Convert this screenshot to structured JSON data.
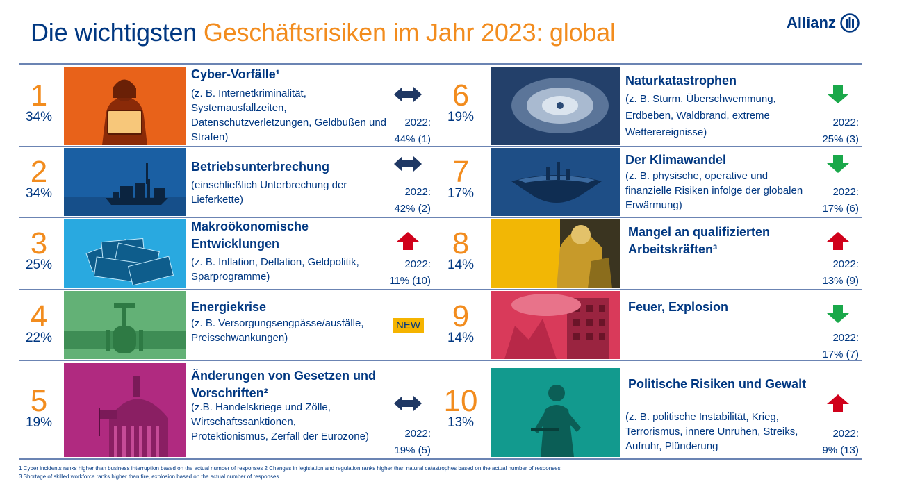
{
  "header": {
    "title_part1": "Die wichtigsten ",
    "title_part2": "Geschäftsrisiken im Jahr 2023: global",
    "logo_text": "Allianz"
  },
  "risks": [
    {
      "rank": "1",
      "pct": "34%",
      "title": "Cyber-Vorfälle¹",
      "desc": "(z. B. Internetkriminalität, Systemausfallzeiten, Datenschutzverletzungen, Geldbußen und Strafen)",
      "trend": "unchanged",
      "prev_label": "2022:",
      "prev_value": "44% (1)"
    },
    {
      "rank": "2",
      "pct": "34%",
      "title": "Betriebsunterbrechung",
      "desc": "(einschließlich Unterbrechung der Lieferkette)",
      "trend": "unchanged",
      "prev_label": "2022:",
      "prev_value": "42% (2)"
    },
    {
      "rank": "3",
      "pct": "25%",
      "title": "Makroökonomische Entwicklungen",
      "desc": "(z. B. Inflation, Deflation, Geldpolitik, Sparprogramme)",
      "trend": "up",
      "prev_label": "2022:",
      "prev_value": "11% (10)"
    },
    {
      "rank": "4",
      "pct": "22%",
      "title": "Energiekrise",
      "desc": "(z. B. Versorgungsengpässe/ausfälle, Preisschwankungen)",
      "trend": "new",
      "badge": "NEW"
    },
    {
      "rank": "5",
      "pct": "19%",
      "title": "Änderungen von Gesetzen und Vorschriften²",
      "desc": "(z.B. Handelskriege und Zölle, Wirtschaftssanktionen, Protektionismus, Zerfall der Eurozone)",
      "trend": "unchanged",
      "prev_label": "2022:",
      "prev_value": "19% (5)"
    },
    {
      "rank": "6",
      "pct": "19%",
      "title": "Naturkatastrophen",
      "desc": "(z. B. Sturm, Überschwemmung, Erdbeben, Waldbrand, extreme Wetterereignisse)",
      "trend": "down",
      "prev_label": "2022:",
      "prev_value": "25% (3)"
    },
    {
      "rank": "7",
      "pct": "17%",
      "title": "Der Klimawandel",
      "desc": "(z. B. physische, operative und finanzielle Risiken infolge der globalen Erwärmung)",
      "trend": "down",
      "prev_label": "2022:",
      "prev_value": "17% (6)"
    },
    {
      "rank": "8",
      "pct": "14%",
      "title": "Mangel an qualifizierten Arbeitskräften³",
      "desc": "",
      "trend": "up",
      "prev_label": "2022:",
      "prev_value": "13% (9)"
    },
    {
      "rank": "9",
      "pct": "14%",
      "title": "Feuer, Explosion",
      "desc": "",
      "trend": "down",
      "prev_label": "2022:",
      "prev_value": "17% (7)"
    },
    {
      "rank": "10",
      "pct": "13%",
      "title": "Politische Risiken und Gewalt",
      "desc": "(z. B. politische Instabilität, Krieg, Terrorismus, innere Unruhen, Streiks, Aufruhr, Plünderung",
      "trend": "up",
      "prev_label": "2022:",
      "prev_value": "9% (13)"
    }
  ],
  "footnotes": {
    "line1": "1 Cyber incidents ranks higher than business interruption based on the actual number of responses  2 Changes in legislation and regulation ranks higher than natural catastrophes based on the actual number of responses",
    "line2": "3 Shortage of skilled workforce ranks higher than fire, explosion based on the actual number of responses"
  },
  "colors": {
    "brand_blue": "#003781",
    "accent_orange": "#f28c1e",
    "trend_up": "#d0011b",
    "trend_down": "#1aa84a",
    "badge": "#f5b400",
    "icon_cyber": "#e8621a",
    "icon_business": "#1a5fa3",
    "icon_macro": "#29a9e0",
    "icon_energy": "#5aa86a",
    "icon_law": "#b02a80",
    "icon_natcat": "#23406a",
    "icon_climate": "#1e4e86",
    "icon_workforce": "#f2b705",
    "icon_fire": "#d93a5a",
    "icon_political": "#129a8e"
  }
}
